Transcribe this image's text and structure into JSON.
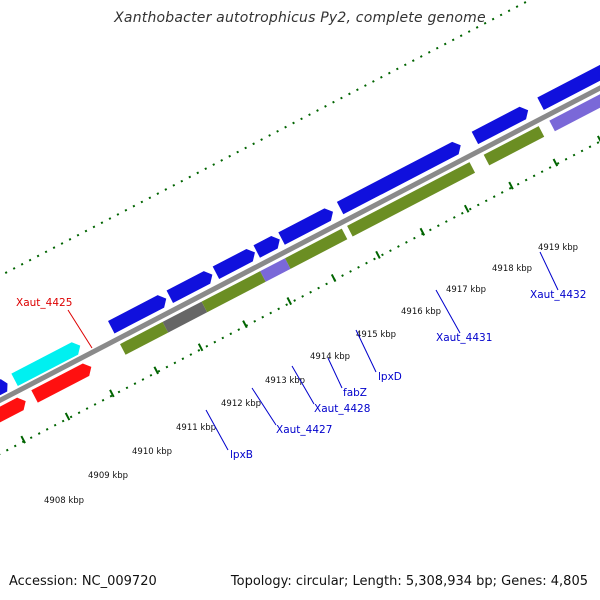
{
  "title": "Xanthobacter autotrophicus Py2, complete genome",
  "accession": "Accession: NC_009720",
  "summary": "Topology: circular; Length: 5,308,934 bp; Genes: 4,805",
  "colors": {
    "backbone": "#8a8a8a",
    "forward_gene": "#1010dd",
    "reverse_gene": "#ff1010",
    "highlight_gene": "#00f0f0",
    "cds_olive": "#6b8e23",
    "gray_segment": "#666666",
    "purple_segment": "#7a68d8",
    "tick_green": "#006400",
    "label_blue": "#0000cc",
    "label_red": "#dd0000"
  },
  "scale_labels": [
    "4908 kbp",
    "4909 kbp",
    "4910 kbp",
    "4911 kbp",
    "4912 kbp",
    "4913 kbp",
    "4914 kbp",
    "4915 kbp",
    "4916 kbp",
    "4917 kbp",
    "4918 kbp",
    "4919 kbp"
  ],
  "gene_labels": [
    {
      "name": "Xaut_4425",
      "color": "red"
    },
    {
      "name": "lpxB",
      "color": "blue"
    },
    {
      "name": "Xaut_4427",
      "color": "blue"
    },
    {
      "name": "Xaut_4428",
      "color": "blue"
    },
    {
      "name": "fabZ",
      "color": "blue"
    },
    {
      "name": "lpxD",
      "color": "blue"
    },
    {
      "name": "Xaut_4431",
      "color": "blue"
    },
    {
      "name": "Xaut_4432",
      "color": "blue"
    }
  ]
}
